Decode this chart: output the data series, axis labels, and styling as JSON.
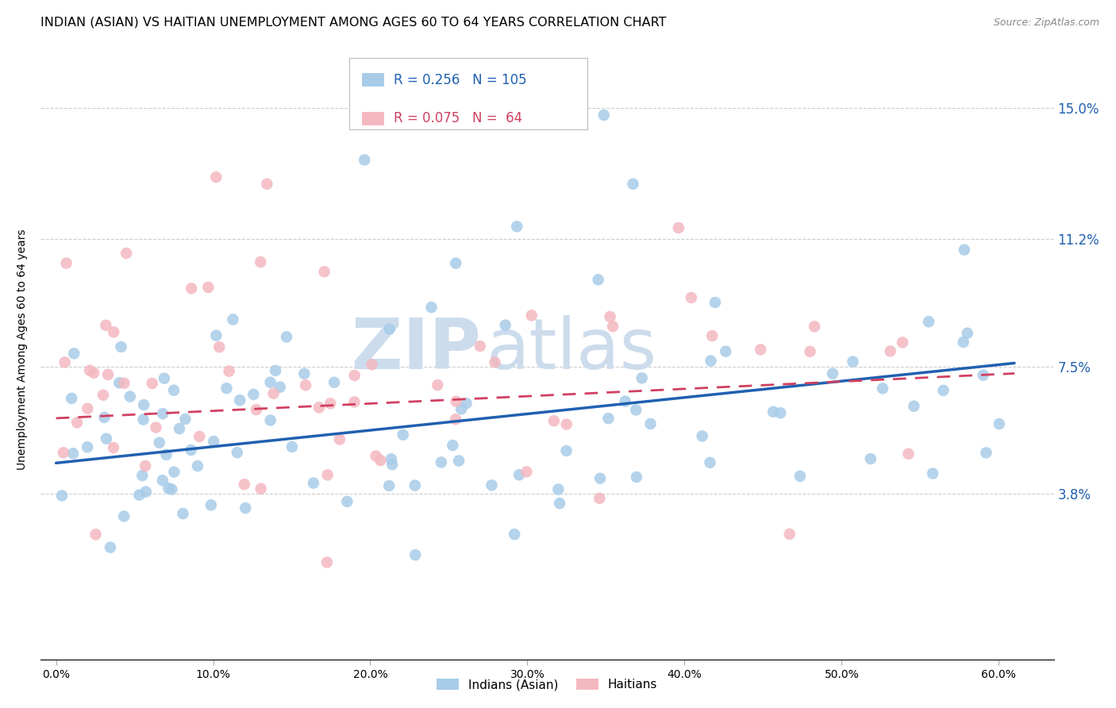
{
  "title": "INDIAN (ASIAN) VS HAITIAN UNEMPLOYMENT AMONG AGES 60 TO 64 YEARS CORRELATION CHART",
  "source": "Source: ZipAtlas.com",
  "xlabel_ticks": [
    "0.0%",
    "10.0%",
    "20.0%",
    "30.0%",
    "40.0%",
    "50.0%",
    "60.0%"
  ],
  "xlabel_vals": [
    0.0,
    0.1,
    0.2,
    0.3,
    0.4,
    0.5,
    0.6
  ],
  "ylabel": "Unemployment Among Ages 60 to 64 years",
  "ytick_labels": [
    "3.8%",
    "7.5%",
    "11.2%",
    "15.0%"
  ],
  "ytick_vals": [
    0.038,
    0.075,
    0.112,
    0.15
  ],
  "ylim": [
    -0.01,
    0.17
  ],
  "xlim": [
    -0.01,
    0.635
  ],
  "legend_blue_R": "0.256",
  "legend_blue_N": "105",
  "legend_pink_R": "0.075",
  "legend_pink_N": " 64",
  "blue_color": "#a8cce8",
  "pink_color": "#f4b8c1",
  "blue_line_color": "#2060b0",
  "pink_line_color": "#d04060",
  "watermark_zip": "ZIP",
  "watermark_atlas": "atlas",
  "watermark_color": "#ccdcec",
  "blue_line_x": [
    0.0,
    0.61
  ],
  "blue_line_y_start": 0.047,
  "blue_line_y_end": 0.076,
  "pink_line_x": [
    0.0,
    0.61
  ],
  "pink_line_y_start": 0.06,
  "pink_line_y_end": 0.073,
  "title_fontsize": 11.5,
  "axis_label_fontsize": 10,
  "tick_fontsize": 10,
  "source_fontsize": 9,
  "legend_fontsize": 12,
  "bg_color": "#ffffff",
  "grid_color": "#cccccc"
}
